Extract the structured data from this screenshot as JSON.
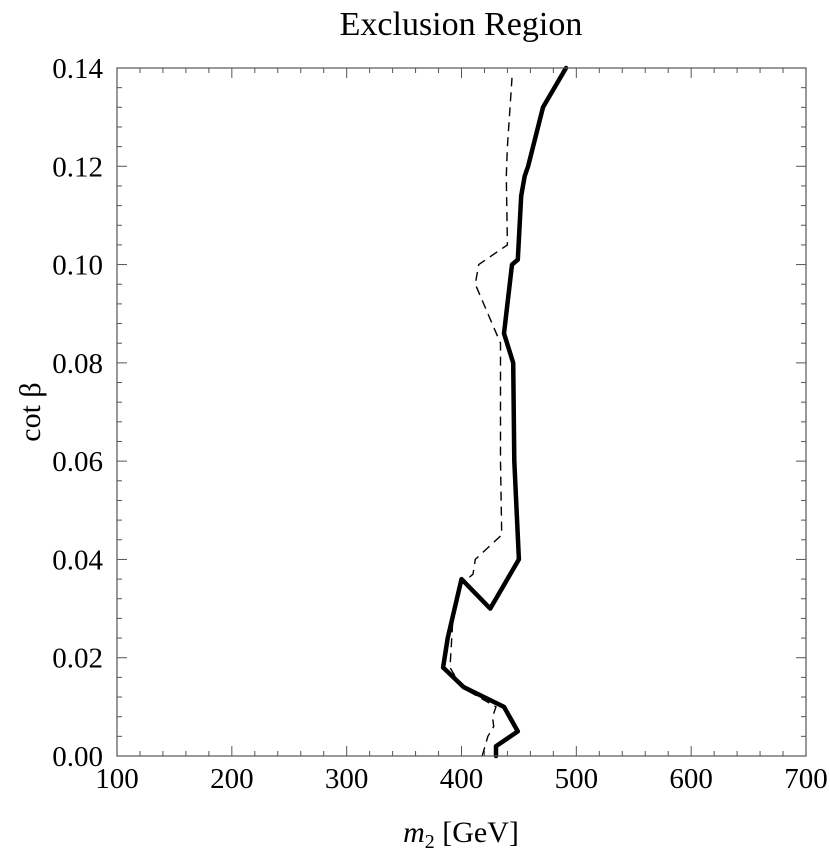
{
  "chart_data": {
    "type": "line",
    "title": "Exclusion Region",
    "xlabel_symbol": "m",
    "xlabel_subscript": "2",
    "xlabel_unit": " [GeV]",
    "ylabel": "cot β",
    "xlim": [
      100,
      700
    ],
    "ylim": [
      0,
      0.14
    ],
    "x_ticks": [
      100,
      200,
      300,
      400,
      500,
      600,
      700
    ],
    "y_ticks": [
      0.0,
      0.02,
      0.04,
      0.06,
      0.08,
      0.1,
      0.12,
      0.14
    ],
    "x_tick_labels": [
      "100",
      "200",
      "300",
      "400",
      "500",
      "600",
      "700"
    ],
    "y_tick_labels": [
      "0.00",
      "0.02",
      "0.04",
      "0.06",
      "0.08",
      "0.10",
      "0.12",
      "0.14"
    ],
    "grid": false,
    "series": [
      {
        "style": "solid-thick",
        "color": "#000000",
        "points": [
          [
            430,
            0.0
          ],
          [
            430,
            0.002
          ],
          [
            449,
            0.005
          ],
          [
            437,
            0.01
          ],
          [
            402,
            0.014
          ],
          [
            384,
            0.018
          ],
          [
            388,
            0.024
          ],
          [
            400,
            0.036
          ],
          [
            425,
            0.03
          ],
          [
            450,
            0.04
          ],
          [
            446,
            0.06
          ],
          [
            445,
            0.08
          ],
          [
            437,
            0.086
          ],
          [
            444,
            0.1
          ],
          [
            449,
            0.101
          ],
          [
            452,
            0.114
          ],
          [
            455,
            0.118
          ],
          [
            458,
            0.12
          ],
          [
            471,
            0.132
          ],
          [
            491,
            0.14
          ]
        ]
      },
      {
        "style": "dashed-thin",
        "color": "#000000",
        "points": [
          [
            418,
            0.0
          ],
          [
            423,
            0.004
          ],
          [
            428,
            0.006
          ],
          [
            427,
            0.008
          ],
          [
            430,
            0.01
          ],
          [
            415,
            0.012
          ],
          [
            400,
            0.014
          ],
          [
            390,
            0.018
          ],
          [
            393,
            0.03
          ],
          [
            400,
            0.035
          ],
          [
            410,
            0.037
          ],
          [
            412,
            0.04
          ],
          [
            435,
            0.045
          ],
          [
            434,
            0.06
          ],
          [
            434,
            0.084
          ],
          [
            412,
            0.096
          ],
          [
            415,
            0.1
          ],
          [
            440,
            0.104
          ],
          [
            439,
            0.118
          ],
          [
            440,
            0.124
          ],
          [
            444,
            0.138
          ]
        ]
      }
    ]
  }
}
